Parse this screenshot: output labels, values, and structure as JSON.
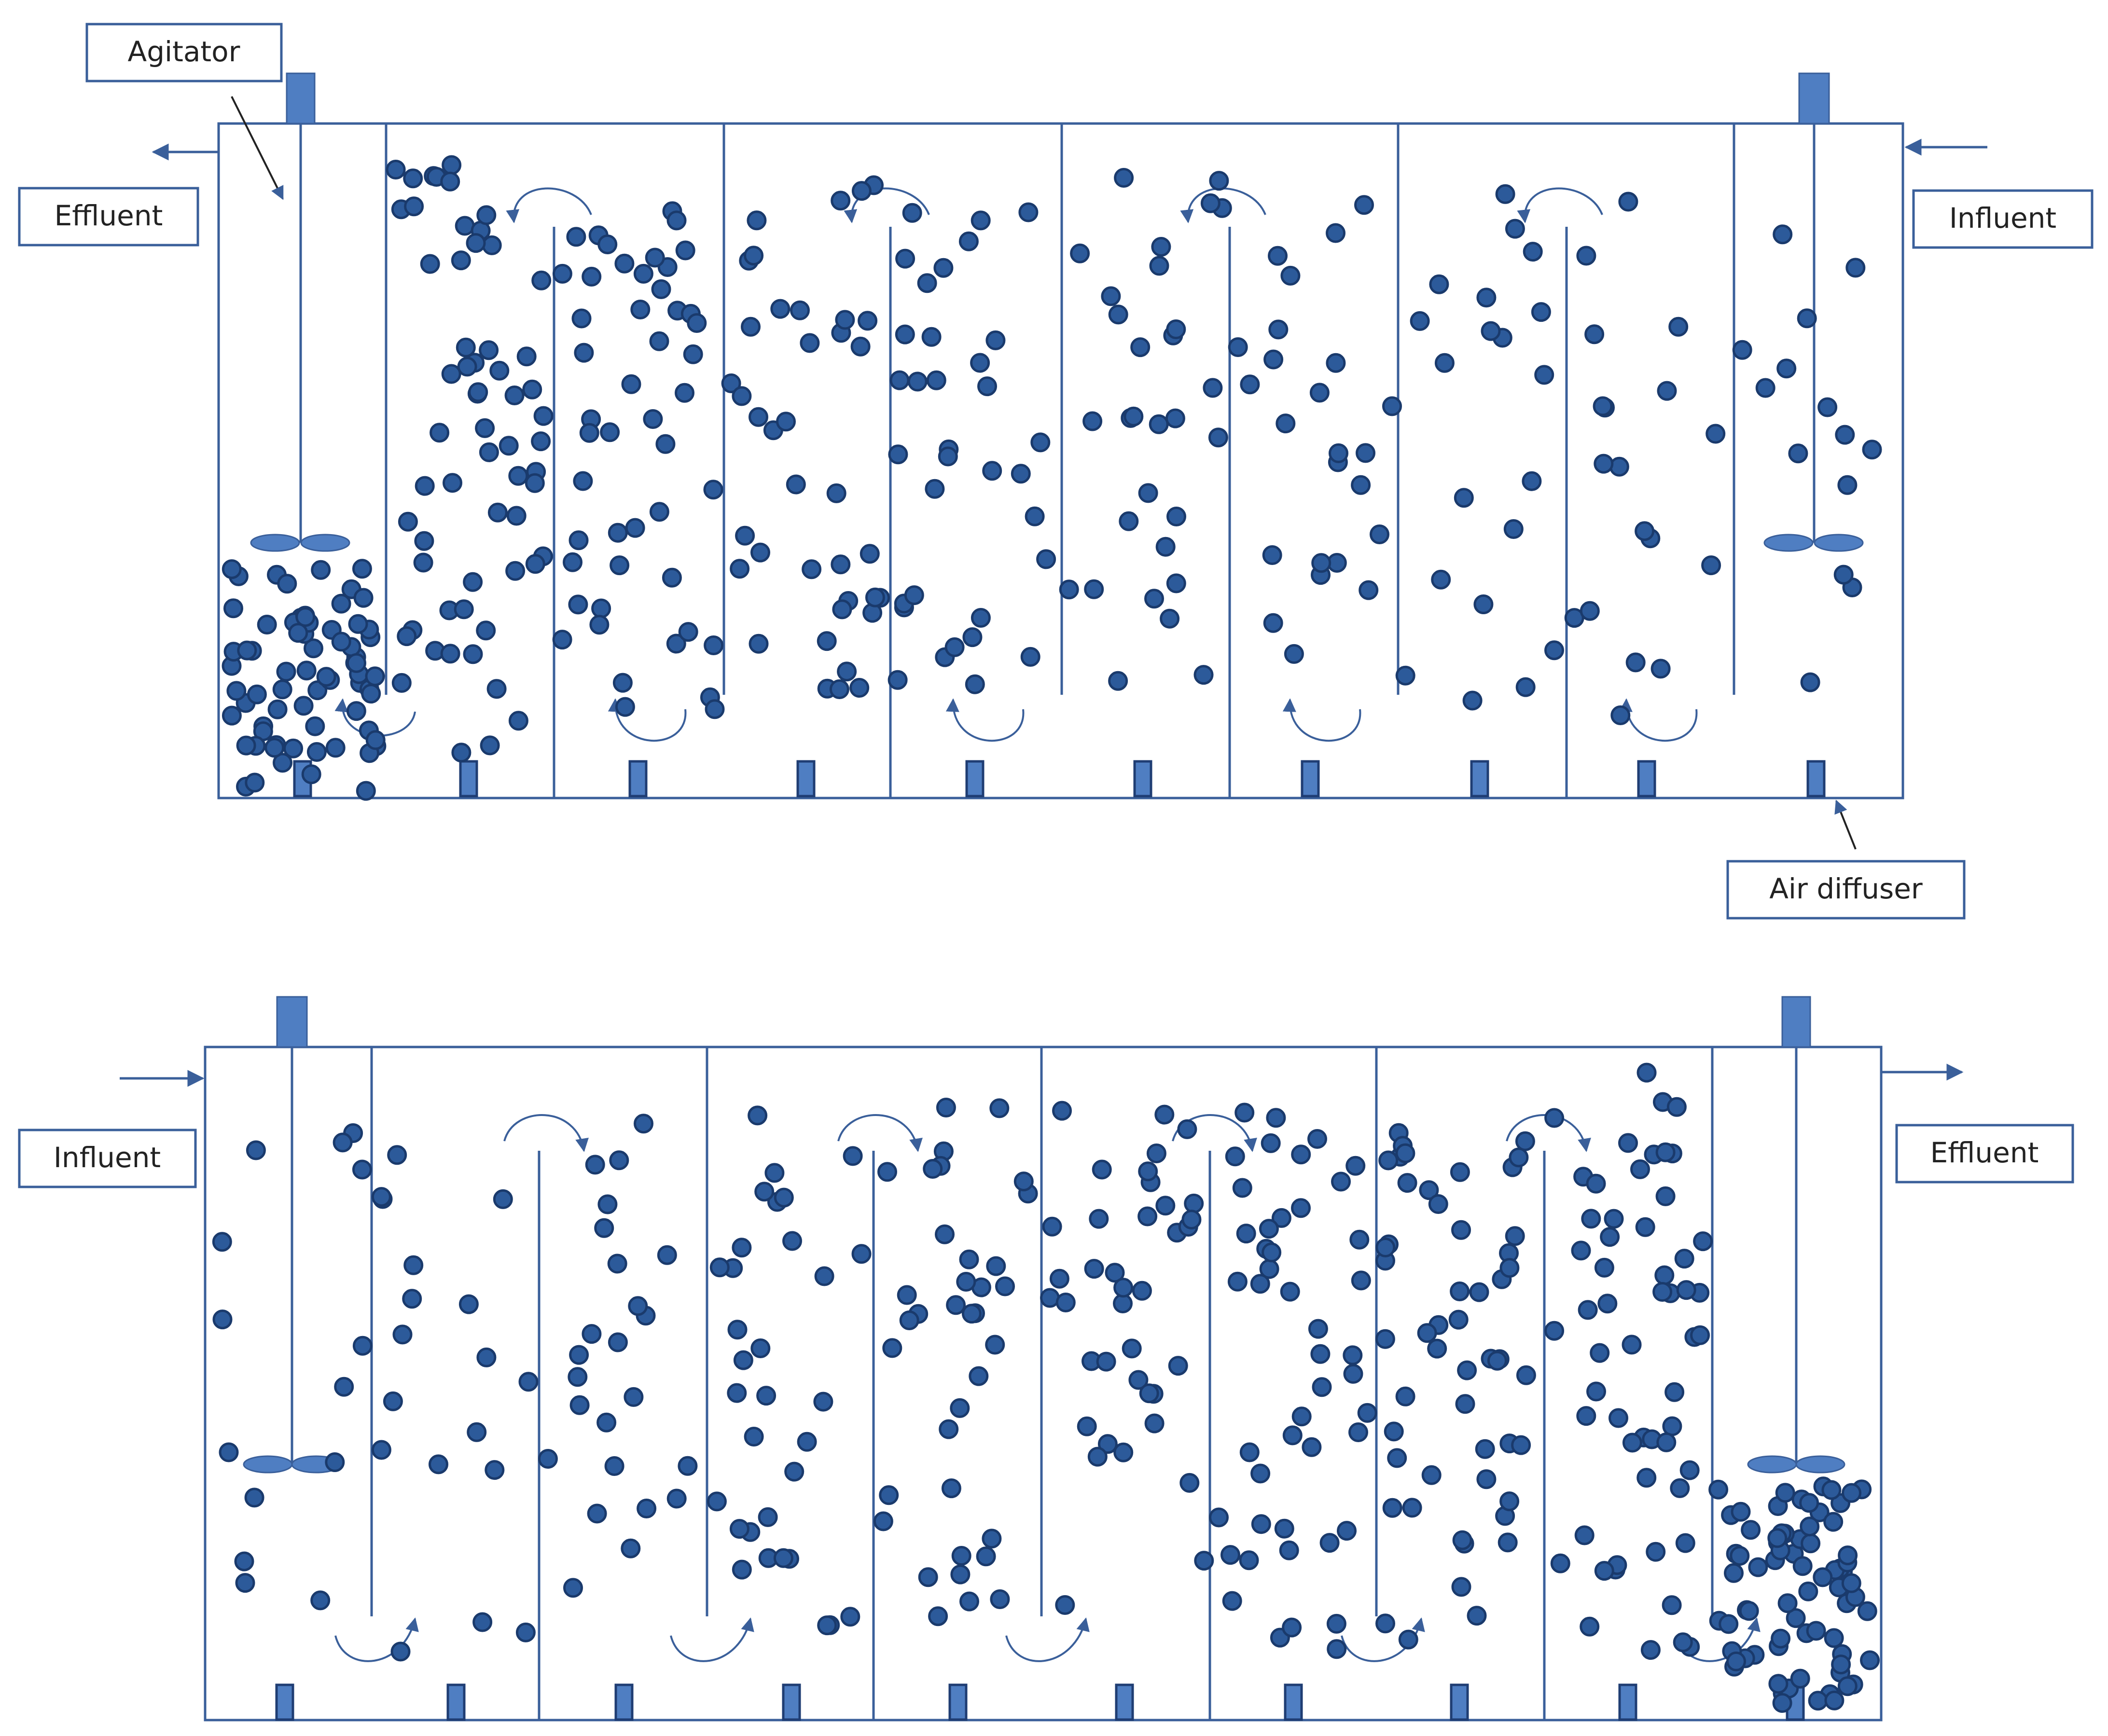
{
  "labels": {
    "agitator": "Agitator",
    "effluent_top": "Effluent",
    "influent_top": "Influent",
    "air_diffuser": "Air diffuser",
    "influent_bottom": "Influent",
    "effluent_bottom": "Effluent"
  },
  "colors": {
    "line": "#3a5f9a",
    "particle_fill": "#2c5a9a",
    "particle_stroke": "#1a3a6c",
    "diffuser_fill": "#4f7ec2",
    "motor_fill": "#4f7ec2",
    "label_border": "#3a5f9a"
  }
}
